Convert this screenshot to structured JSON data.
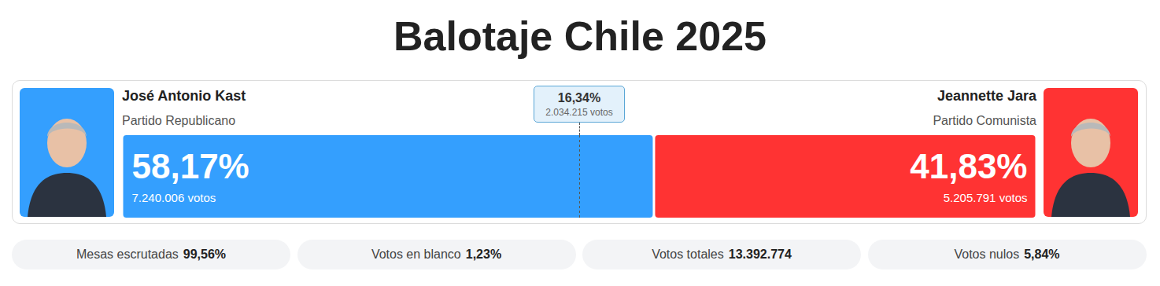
{
  "chart_data": {
    "type": "bar",
    "title": "Balotaje Chile 2025",
    "orientation": "horizontal",
    "stacked": true,
    "data_labels": true,
    "tick_labels": false,
    "xlim": [
      0,
      100
    ],
    "series": [
      {
        "name": "José Antonio Kast",
        "party": "Partido Republicano",
        "color": "#349ffe",
        "values": [
          58.17
        ],
        "value_labels": [
          "58,17%"
        ],
        "votes_label": "7.240.006 votos"
      },
      {
        "name": "Jeannette Jara",
        "party": "Partido Comunista",
        "color": "#ff3333",
        "values": [
          41.83
        ],
        "value_labels": [
          "41,83%"
        ],
        "votes_label": "5.205.791 votos"
      }
    ],
    "annotations": [
      {
        "label": "16,34%",
        "sublabel": "2.034.215 votos",
        "threshold": 50
      }
    ],
    "stats": [
      {
        "label": "Mesas escrutadas",
        "value_label": "99,56%"
      },
      {
        "label": "Votos en blanco",
        "value_label": "1,23%"
      },
      {
        "label": "Votos totales",
        "value_label": "13.392.774"
      },
      {
        "label": "Votos nulos",
        "value_label": "5,84%"
      }
    ]
  }
}
